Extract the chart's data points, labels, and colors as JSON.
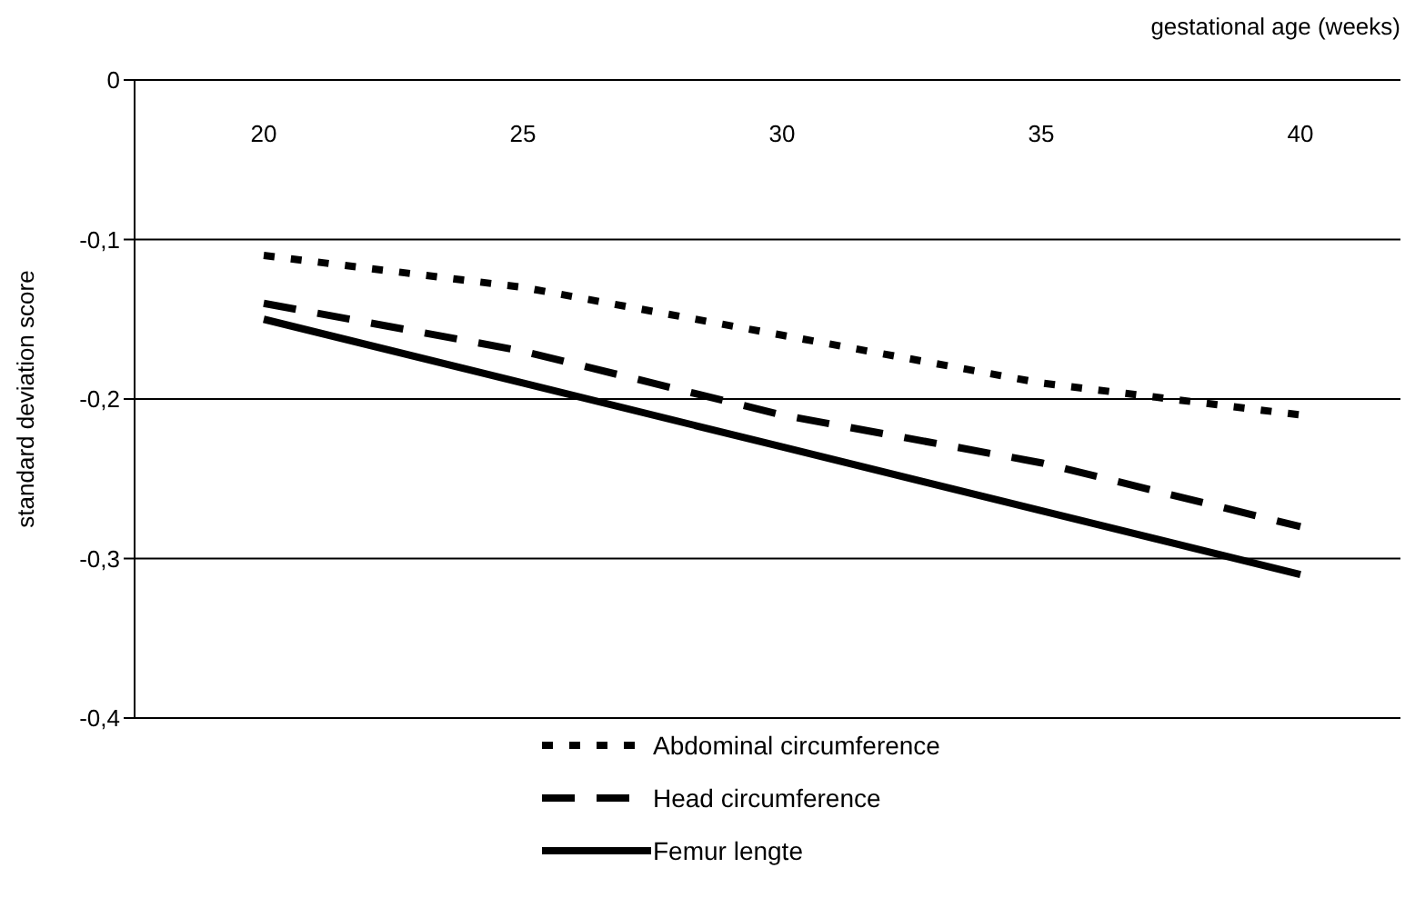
{
  "chart_data": {
    "type": "line",
    "xlabel": "gestational age (weeks)",
    "ylabel": "standard deviation score",
    "categories": [
      "20",
      "25",
      "30",
      "35",
      "40"
    ],
    "ylim": [
      -0.4,
      0
    ],
    "yticks": [
      {
        "value": 0,
        "label": "0"
      },
      {
        "value": -0.1,
        "label": "-0,1"
      },
      {
        "value": -0.2,
        "label": "-0,2"
      },
      {
        "value": -0.3,
        "label": "-0,3"
      },
      {
        "value": -0.4,
        "label": "-0,4"
      }
    ],
    "grid": "y",
    "legend": "bottom",
    "marker": "none",
    "series": [
      {
        "name": "Abdominal circumference",
        "color": "#000000",
        "line_style": "dotted",
        "values": [
          -0.11,
          -0.13,
          -0.16,
          -0.19,
          -0.21
        ]
      },
      {
        "name": "Head circumference",
        "color": "#000000",
        "line_style": "dashed",
        "values": [
          -0.14,
          -0.17,
          -0.21,
          -0.24,
          -0.28
        ]
      },
      {
        "name": "Femur lengte",
        "color": "#000000",
        "line_style": "solid",
        "values": [
          -0.15,
          -0.19,
          -0.23,
          -0.27,
          -0.31
        ]
      }
    ]
  }
}
